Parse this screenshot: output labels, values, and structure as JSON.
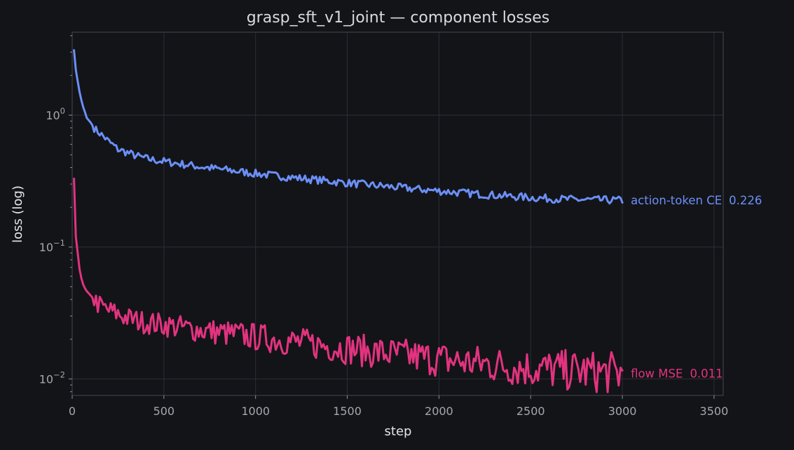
{
  "chart_data": {
    "type": "line",
    "title": "grasp_sft_v1_joint — component losses",
    "xlabel": "step",
    "ylabel": "loss (log)",
    "yscale": "log",
    "grid": true,
    "xlim": [
      0,
      3550
    ],
    "ylim": [
      0.0075,
      4.25
    ],
    "xticks": [
      "0",
      "500",
      "1000",
      "1500",
      "2000",
      "2500",
      "3000",
      "3500"
    ],
    "yticks": [
      {
        "base": "10",
        "exp": "0",
        "value": 1
      },
      {
        "base": "10",
        "exp": "−1",
        "value": 0.1
      },
      {
        "base": "10",
        "exp": "−2",
        "value": 0.01
      }
    ],
    "series": [
      {
        "name": "action-token CE",
        "final_label": "0.226",
        "color": "#6b8ff6",
        "points": [
          [
            10,
            3.1
          ],
          [
            20,
            2.2
          ],
          [
            30,
            1.8
          ],
          [
            40,
            1.5
          ],
          [
            50,
            1.3
          ],
          [
            60,
            1.15
          ],
          [
            70,
            1.05
          ],
          [
            80,
            0.95
          ],
          [
            100,
            0.88
          ],
          [
            125,
            0.78
          ],
          [
            150,
            0.73
          ],
          [
            175,
            0.68
          ],
          [
            200,
            0.63
          ],
          [
            250,
            0.55
          ],
          [
            300,
            0.52
          ],
          [
            350,
            0.49
          ],
          [
            400,
            0.47
          ],
          [
            450,
            0.455
          ],
          [
            500,
            0.445
          ],
          [
            600,
            0.425
          ],
          [
            700,
            0.405
          ],
          [
            800,
            0.39
          ],
          [
            900,
            0.375
          ],
          [
            1000,
            0.36
          ],
          [
            1100,
            0.348
          ],
          [
            1200,
            0.337
          ],
          [
            1300,
            0.326
          ],
          [
            1400,
            0.316
          ],
          [
            1500,
            0.306
          ],
          [
            1600,
            0.297
          ],
          [
            1700,
            0.289
          ],
          [
            1800,
            0.281
          ],
          [
            1900,
            0.273
          ],
          [
            2000,
            0.266
          ],
          [
            2100,
            0.259
          ],
          [
            2200,
            0.253
          ],
          [
            2300,
            0.247
          ],
          [
            2400,
            0.242
          ],
          [
            2500,
            0.237
          ],
          [
            2600,
            0.233
          ],
          [
            2700,
            0.23
          ],
          [
            2800,
            0.228
          ],
          [
            2900,
            0.227
          ],
          [
            3000,
            0.226
          ]
        ]
      },
      {
        "name": "flow MSE",
        "final_label": "0.011",
        "color": "#e2337f",
        "points": [
          [
            10,
            0.33
          ],
          [
            15,
            0.2
          ],
          [
            20,
            0.12
          ],
          [
            30,
            0.09
          ],
          [
            40,
            0.068
          ],
          [
            50,
            0.058
          ],
          [
            60,
            0.052
          ],
          [
            75,
            0.047
          ],
          [
            100,
            0.043
          ],
          [
            125,
            0.039
          ],
          [
            150,
            0.036
          ],
          [
            200,
            0.033
          ],
          [
            250,
            0.031
          ],
          [
            300,
            0.029
          ],
          [
            350,
            0.0278
          ],
          [
            400,
            0.0268
          ],
          [
            500,
            0.0258
          ],
          [
            600,
            0.0245
          ],
          [
            700,
            0.0235
          ],
          [
            800,
            0.0225
          ],
          [
            900,
            0.0217
          ],
          [
            1000,
            0.0208
          ],
          [
            1100,
            0.02
          ],
          [
            1200,
            0.0192
          ],
          [
            1300,
            0.0184
          ],
          [
            1400,
            0.0177
          ],
          [
            1500,
            0.017
          ],
          [
            1600,
            0.0163
          ],
          [
            1700,
            0.0157
          ],
          [
            1800,
            0.0151
          ],
          [
            1900,
            0.0146
          ],
          [
            2000,
            0.0141
          ],
          [
            2100,
            0.0136
          ],
          [
            2200,
            0.0132
          ],
          [
            2300,
            0.0128
          ],
          [
            2400,
            0.0124
          ],
          [
            2500,
            0.0121
          ],
          [
            2600,
            0.0118
          ],
          [
            2700,
            0.0116
          ],
          [
            2800,
            0.0114
          ],
          [
            2900,
            0.0112
          ],
          [
            3000,
            0.011
          ]
        ]
      }
    ]
  }
}
